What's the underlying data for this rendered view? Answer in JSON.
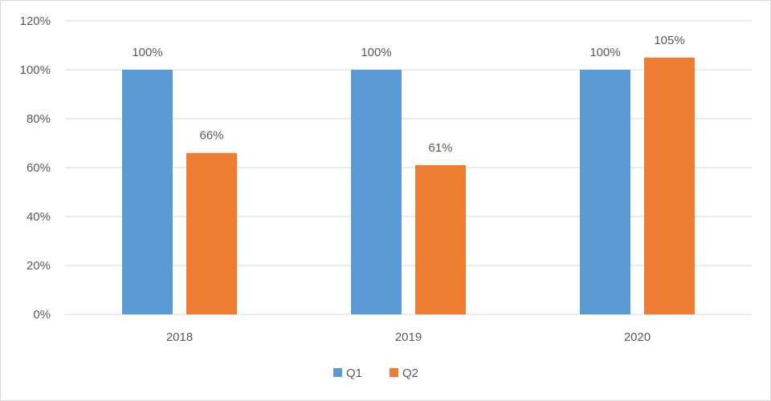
{
  "chart_data": {
    "type": "bar",
    "categories": [
      "2018",
      "2019",
      "2020"
    ],
    "series": [
      {
        "name": "Q1",
        "values": [
          100,
          100,
          100
        ],
        "color": "#5b9bd5"
      },
      {
        "name": "Q2",
        "values": [
          66,
          61,
          105
        ],
        "color": "#ed7d31"
      }
    ],
    "data_labels": [
      [
        "100%",
        "100%",
        "100%"
      ],
      [
        "66%",
        "61%",
        "105%"
      ]
    ],
    "y_ticks": [
      "0%",
      "20%",
      "40%",
      "60%",
      "80%",
      "100%",
      "120%"
    ],
    "ylim": [
      0,
      120
    ],
    "y_unit": "%",
    "grid": true,
    "legend_position": "bottom"
  },
  "colors": {
    "gridline": "#d9d9d9",
    "text": "#595959"
  }
}
